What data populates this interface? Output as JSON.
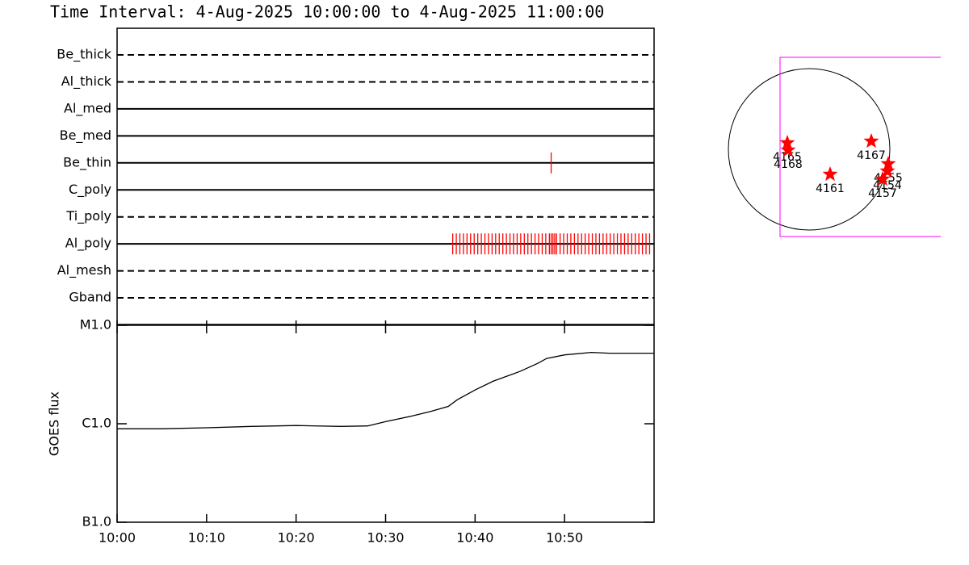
{
  "title": "Time Interval:  4-Aug-2025 10:00:00 to  4-Aug-2025 11:00:00",
  "chart_data": [
    {
      "type": "timeline",
      "categories": [
        "Be_thick",
        "Al_thick",
        "Al_med",
        "Be_med",
        "Be_thin",
        "C_poly",
        "Ti_poly",
        "Al_poly",
        "Al_mesh",
        "Gband"
      ],
      "line_styles": [
        "dashed",
        "dashed",
        "solid",
        "solid",
        "solid",
        "solid",
        "dashed",
        "solid",
        "dashed",
        "dashed"
      ],
      "events": [
        [],
        [],
        [],
        [],
        [
          48.5
        ],
        [],
        [],
        [
          37.5,
          37.9,
          38.3,
          38.7,
          39.1,
          39.5,
          39.9,
          40.3,
          40.7,
          41.1,
          41.5,
          41.9,
          42.3,
          42.7,
          43.1,
          43.5,
          43.9,
          44.3,
          44.7,
          45.1,
          45.5,
          45.9,
          46.3,
          46.7,
          47.1,
          47.5,
          47.9,
          48.3,
          48.5,
          48.7,
          48.9,
          49.1,
          49.5,
          49.9,
          50.3,
          50.7,
          51.1,
          51.5,
          51.9,
          52.3,
          52.7,
          53.1,
          53.5,
          53.9,
          54.3,
          54.7,
          55.1,
          55.5,
          55.9,
          56.3,
          56.7,
          57.1,
          57.5,
          57.9,
          58.3,
          58.7,
          59.1,
          59.5
        ],
        [],
        []
      ],
      "color": "#ff0000",
      "xlim": [
        0,
        60
      ]
    },
    {
      "type": "line",
      "y_label": "GOES flux",
      "x": [
        0,
        5,
        10,
        15,
        20,
        25,
        28,
        30,
        33,
        35,
        37,
        38,
        40,
        42,
        45,
        47,
        48,
        50,
        53,
        55,
        60
      ],
      "values": [
        8.9e-07,
        8.9e-07,
        9.1e-07,
        9.4e-07,
        9.6e-07,
        9.4e-07,
        9.5e-07,
        1.05e-06,
        1.2e-06,
        1.33e-06,
        1.5e-06,
        1.75e-06,
        2.2e-06,
        2.7e-06,
        3.4e-06,
        4.1e-06,
        4.6e-06,
        5e-06,
        5.3e-06,
        5.2e-06,
        5.2e-06
      ],
      "color": "#000000",
      "log_y": true,
      "xlim": [
        0,
        60
      ],
      "xticks": [
        {
          "value": 0,
          "label": "10:00"
        },
        {
          "value": 10,
          "label": "10:10"
        },
        {
          "value": 20,
          "label": "10:20"
        },
        {
          "value": 30,
          "label": "10:30"
        },
        {
          "value": 40,
          "label": "10:40"
        },
        {
          "value": 50,
          "label": "10:50"
        }
      ],
      "ylim": [
        1e-07,
        1e-05
      ],
      "yticks": [
        {
          "value": 1e-07,
          "label": "B1.0"
        },
        {
          "value": 1e-06,
          "label": "C1.0"
        },
        {
          "value": 1e-05,
          "label": "M1.0"
        }
      ]
    },
    {
      "type": "scatter",
      "labels": [
        "4165",
        "4168",
        "4167",
        "4161",
        "4155",
        "4154",
        "4157"
      ],
      "x": [
        -0.27,
        -0.26,
        0.77,
        0.26,
        0.98,
        0.97,
        0.91
      ],
      "y": [
        0.08,
        -0.01,
        0.1,
        -0.31,
        -0.18,
        -0.27,
        -0.37
      ],
      "color": "#ff0000",
      "disk_radius": 1,
      "disk_color": "#000000",
      "fov": {
        "x": [
          -0.36,
          1.63
        ],
        "y": [
          -1.08,
          1.14
        ],
        "color": "#ff00ff"
      },
      "xlim": [
        -1.2,
        1.98
      ],
      "ylim": [
        -1.5,
        1.5
      ]
    }
  ]
}
